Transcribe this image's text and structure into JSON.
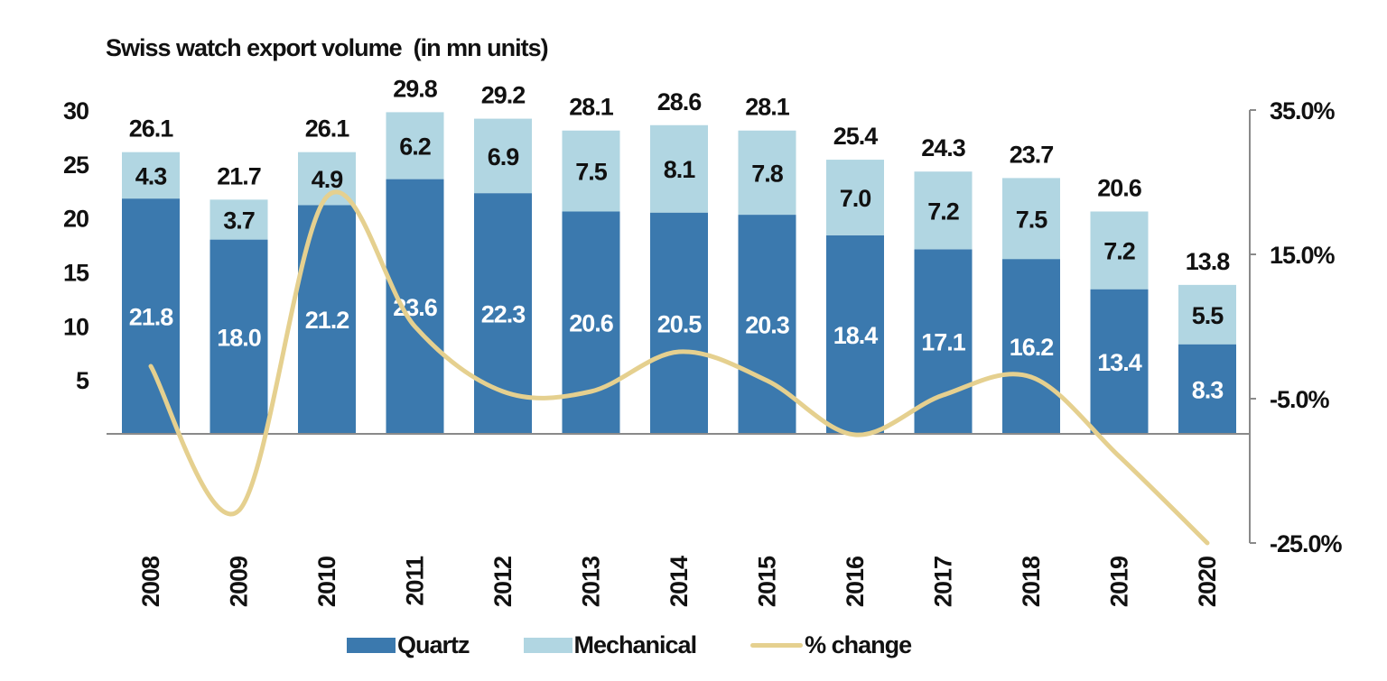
{
  "chart_data": {
    "type": "bar",
    "stacked": true,
    "title": "Swiss watch export volume  (in mn units)",
    "categories": [
      "2008",
      "2009",
      "2010",
      "2011",
      "2012",
      "2013",
      "2014",
      "2015",
      "2016",
      "2017",
      "2018",
      "2019",
      "2020"
    ],
    "series": [
      {
        "name": "Quartz",
        "color": "#3b79ae",
        "values": [
          21.8,
          18.0,
          21.2,
          23.6,
          22.3,
          20.6,
          20.5,
          20.3,
          18.4,
          17.1,
          16.2,
          13.4,
          8.3
        ]
      },
      {
        "name": "Mechanical",
        "color": "#b1d6e2",
        "values": [
          4.3,
          3.7,
          4.9,
          6.2,
          6.9,
          7.5,
          8.1,
          7.8,
          7.0,
          7.2,
          7.5,
          7.2,
          5.5
        ]
      }
    ],
    "totals": [
      26.1,
      21.7,
      26.1,
      29.8,
      29.2,
      28.1,
      28.6,
      28.1,
      25.4,
      24.3,
      23.7,
      20.6,
      13.8
    ],
    "line_series": {
      "name": "% change",
      "color": "#e5d08f",
      "axis": "right",
      "values": [
        -0.5,
        -20.5,
        23.0,
        5.0,
        -4.0,
        -4.0,
        1.5,
        -2.5,
        -10.0,
        -4.5,
        -2.0,
        -13.0,
        -25.0
      ]
    },
    "y_left": {
      "ticks": [
        "5",
        "10",
        "15",
        "20",
        "25",
        "30"
      ],
      "ylim": [
        0,
        30
      ]
    },
    "y_right": {
      "ticks": [
        "35.0%",
        "15.0%",
        "-5.0%",
        "-25.0%"
      ],
      "ylim": [
        -25,
        35
      ]
    },
    "legend": {
      "position": "bottom"
    }
  }
}
